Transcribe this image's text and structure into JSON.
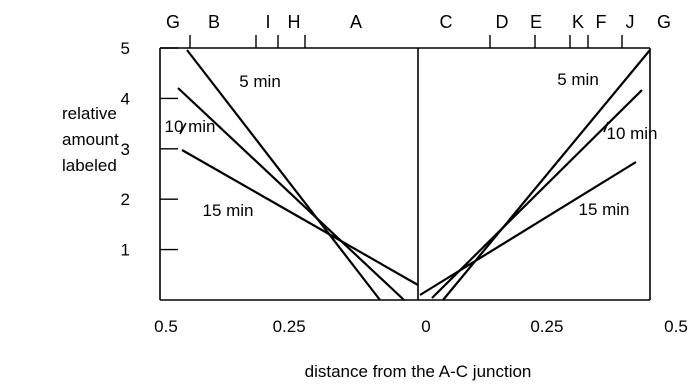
{
  "chart_data": {
    "type": "line",
    "title": "",
    "xlabel": "distance from the A-C junction",
    "ylabel_lines": [
      "relative",
      "amount",
      "labeled"
    ],
    "ylim": [
      0,
      5
    ],
    "y_ticks": [
      "1",
      "2",
      "3",
      "4",
      "5"
    ],
    "x_ticks": [
      {
        "label": "0.5",
        "x": -0.5
      },
      {
        "label": "0.25",
        "x": -0.25
      },
      {
        "label": "0",
        "x": 0
      },
      {
        "label": "0.25",
        "x": 0.25
      },
      {
        "label": "0.5",
        "x": 0.5
      }
    ],
    "top_markers": [
      {
        "label": "G",
        "x": -0.5
      },
      {
        "label": "B",
        "x": -0.445
      },
      {
        "label": "I",
        "x": -0.325
      },
      {
        "label": "H",
        "x": -0.28
      },
      {
        "label": "A",
        "x": -0.12
      },
      {
        "label": "C",
        "x": 0.065
      },
      {
        "label": "D",
        "x": 0.28
      },
      {
        "label": "E",
        "x": 0.37
      },
      {
        "label": "K",
        "x": 0.445
      },
      {
        "label": "F",
        "x": 0.485
      },
      {
        "label": "J",
        "x": 0.535
      },
      {
        "label": "G",
        "x": 0.6
      }
    ],
    "series": [
      {
        "name": "5 min",
        "side": "left",
        "points": [
          [
            -0.445,
            5.0
          ],
          [
            -0.08,
            -0.05
          ]
        ]
      },
      {
        "name": "10 min",
        "side": "left",
        "points": [
          [
            -0.475,
            4.2
          ],
          [
            -0.03,
            -0.05
          ]
        ]
      },
      {
        "name": "15 min",
        "side": "left",
        "points": [
          [
            -0.475,
            3.0
          ],
          [
            0.0,
            0.3
          ]
        ]
      },
      {
        "name": "5 min",
        "side": "right",
        "points": [
          [
            0.04,
            -0.05
          ],
          [
            0.46,
            5.0
          ]
        ]
      },
      {
        "name": "10 min",
        "side": "right",
        "points": [
          [
            0.025,
            0.05
          ],
          [
            0.445,
            4.2
          ]
        ]
      },
      {
        "name": "15 min",
        "side": "right",
        "points": [
          [
            0.005,
            0.2
          ],
          [
            0.43,
            2.8
          ]
        ]
      }
    ],
    "annotations": [
      {
        "text": "5 min",
        "x": -0.345,
        "y": 4.4
      },
      {
        "text": "10 min",
        "x": -0.445,
        "y": 3.45
      },
      {
        "text": "15 min",
        "x": -0.395,
        "y": 1.75
      },
      {
        "text": "5 min",
        "x": 0.32,
        "y": 4.45
      },
      {
        "text": "10 min",
        "x": 0.37,
        "y": 3.25
      },
      {
        "text": "15 min",
        "x": 0.3,
        "y": 1.75
      }
    ],
    "grid": false,
    "legend": "none"
  }
}
